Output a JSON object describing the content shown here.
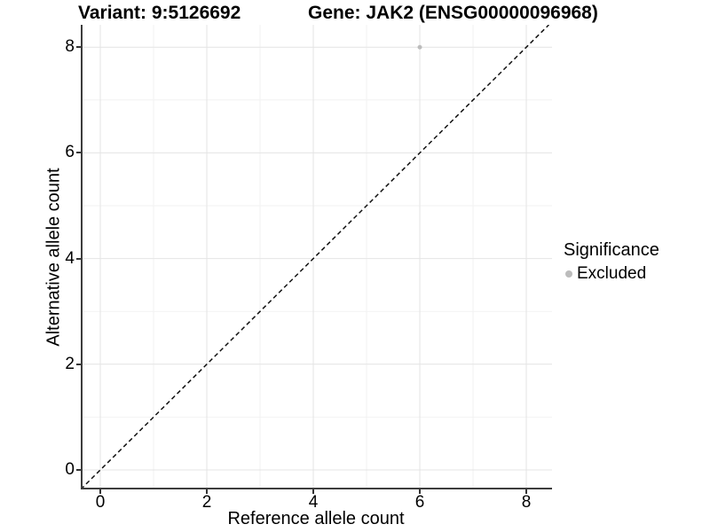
{
  "titles": {
    "variant": "Variant: 9:5126692",
    "gene": "Gene: JAK2 (ENSG00000096968)"
  },
  "chart_data": {
    "type": "scatter",
    "title_left": "Variant: 9:5126692",
    "title_right": "Gene: JAK2 (ENSG00000096968)",
    "xlabel": "Reference allele count",
    "ylabel": "Alternative allele count",
    "xlim": [
      -0.367,
      8.483
    ],
    "ylim": [
      -0.369,
      8.423
    ],
    "xticks": [
      0,
      2,
      4,
      6,
      8
    ],
    "yticks": [
      0,
      2,
      4,
      6,
      8
    ],
    "minor_xticks": [
      1,
      3,
      5,
      7
    ],
    "minor_yticks": [
      1,
      3,
      5,
      7
    ],
    "grid": "major+minor",
    "points": [
      {
        "x": 6,
        "y": 8,
        "series": "Excluded"
      }
    ],
    "reference_line": {
      "style": "dashed",
      "slope": 1,
      "intercept": 0,
      "description": "y = x identity line"
    },
    "legend": {
      "title": "Significance",
      "position": "right",
      "entries": [
        {
          "label": "Excluded",
          "color": "#bcbcbc"
        }
      ]
    }
  },
  "colors": {
    "background": "#ffffff",
    "point": "#bcbcbc",
    "grid_major": "#e4e4e4",
    "grid_minor": "#f2f2f2",
    "axis_line": "#3d3d3d",
    "tick_mark": "#333333",
    "dashed_line": "#111111",
    "text": "#000000"
  }
}
